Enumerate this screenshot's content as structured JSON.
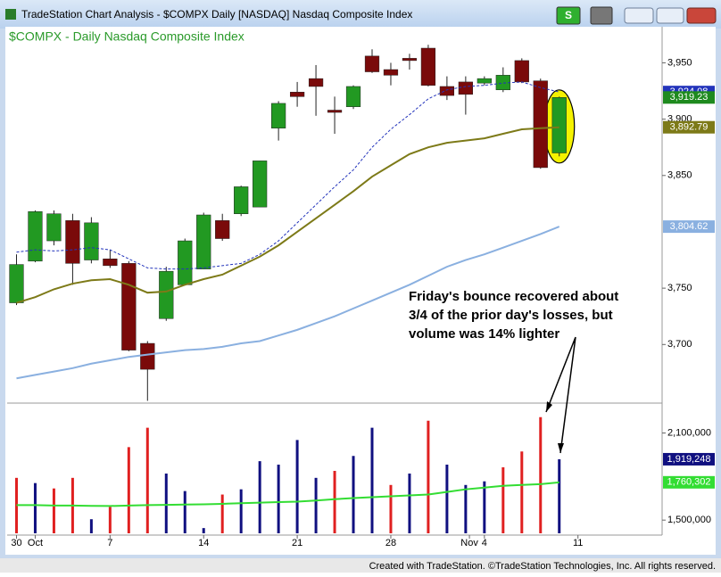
{
  "window_title": "TradeStation Chart Analysis - $COMPX Daily [NASDAQ] Nasdaq Composite Index",
  "toolbar_button": "S",
  "footer": "Created with TradeStation. ©TradeStation Technologies, Inc. All rights reserved.",
  "chart_data": {
    "type": "candlestick",
    "title": "$COMPX - Daily  Nasdaq Composite Index",
    "annotation": [
      "Friday's bounce recovered about",
      "3/4 of the prior day's losses, but",
      "volume was 14% lighter"
    ],
    "up_color": "#229922",
    "down_color": "#7a0a0a",
    "open": [
      3737,
      3774,
      3792,
      3810,
      3775,
      3776,
      3772,
      3701,
      3723,
      3753,
      3767,
      3810,
      3816,
      3822,
      3892,
      3924,
      3936,
      3908,
      3911,
      3956,
      3944,
      3954,
      3963,
      3929,
      3933,
      3932,
      3926,
      3952,
      3934,
      3870
    ],
    "high": [
      3780,
      3819,
      3819,
      3816,
      3813,
      3784,
      3774,
      3703,
      3769,
      3794,
      3817,
      3816,
      3841,
      3863,
      3916,
      3933,
      3948,
      3920,
      3930,
      3962,
      3950,
      3958,
      3966,
      3938,
      3938,
      3938,
      3946,
      3954,
      3936,
      3920
    ],
    "low": [
      3735,
      3773,
      3788,
      3753,
      3772,
      3768,
      3694,
      3650,
      3721,
      3753,
      3767,
      3792,
      3814,
      3822,
      3881,
      3911,
      3903,
      3887,
      3909,
      3941,
      3930,
      3944,
      3929,
      3917,
      3904,
      3930,
      3924,
      3932,
      3856,
      3867
    ],
    "close": [
      3771,
      3818,
      3816,
      3772,
      3808,
      3770,
      3695,
      3678,
      3765,
      3792,
      3815,
      3794,
      3840,
      3863,
      3914,
      3920,
      3929,
      3906,
      3929,
      3942,
      3939,
      3952,
      3930,
      3921,
      3922,
      3936,
      3939,
      3933,
      3857,
      3919.23
    ],
    "close_label": "3,919.23",
    "close_label_color": "#1e8a1e",
    "series": [
      {
        "name": "MA10",
        "color": "#2233bb",
        "dash": true,
        "last_label": "3,924.08",
        "values": [
          3782,
          3784,
          3783,
          3784,
          3786,
          3784,
          3776,
          3768,
          3767,
          3767,
          3768,
          3770,
          3772,
          3780,
          3792,
          3808,
          3824,
          3840,
          3855,
          3875,
          3891,
          3904,
          3918,
          3926,
          3929,
          3930,
          3932,
          3933,
          3928,
          3924.08
        ]
      },
      {
        "name": "MA20",
        "color": "#7d7a18",
        "dash": false,
        "last_label": "3,892.79",
        "values": [
          3737,
          3742,
          3749,
          3754,
          3757,
          3758,
          3753,
          3746,
          3747,
          3753,
          3758,
          3762,
          3770,
          3778,
          3788,
          3800,
          3812,
          3824,
          3836,
          3849,
          3859,
          3869,
          3875,
          3879,
          3881,
          3883,
          3887,
          3891,
          3892,
          3892.79
        ]
      },
      {
        "name": "MA50",
        "color": "#8ab0e0",
        "dash": false,
        "last_label": "3,804.62",
        "values": [
          3670,
          3673,
          3676,
          3679,
          3683,
          3686,
          3689,
          3691,
          3693,
          3695,
          3696,
          3698,
          3701,
          3703,
          3708,
          3713,
          3719,
          3725,
          3732,
          3739,
          3746,
          3753,
          3761,
          3769,
          3775,
          3780,
          3786,
          3792,
          3798,
          3804.62
        ]
      }
    ],
    "ylim": [
      3648,
      3982
    ],
    "yticks": [
      {
        "value": 3700,
        "label": "3,700"
      },
      {
        "value": 3750,
        "label": "3,750"
      },
      {
        "value": 3850,
        "label": "3,850"
      },
      {
        "value": 3900,
        "label": "3,900"
      },
      {
        "value": 3950,
        "label": "3,950"
      }
    ],
    "xlim": [
      -0.5,
      34.4
    ],
    "xticks": [
      {
        "value": 0,
        "label": "30"
      },
      {
        "value": 1,
        "label": "Oct"
      },
      {
        "value": 5,
        "label": "7"
      },
      {
        "value": 10,
        "label": "14"
      },
      {
        "value": 15,
        "label": "21"
      },
      {
        "value": 20,
        "label": "28"
      },
      {
        "value": 24.2,
        "label": "Nov"
      },
      {
        "value": 25,
        "label": "4"
      },
      {
        "value": 30,
        "label": "11"
      }
    ],
    "volume": [
      1791000,
      1755000,
      1718000,
      1791000,
      1506000,
      1591000,
      2003000,
      2136000,
      1821000,
      1700000,
      1445000,
      1676000,
      1712000,
      1906000,
      1882000,
      2052000,
      1791000,
      1839000,
      1942000,
      2136000,
      1742000,
      1821000,
      2185000,
      1882000,
      1742000,
      1767000,
      1864000,
      1973000,
      2209000,
      1919248
    ],
    "volume_colors": [
      "#e02020",
      "#101080",
      "#e02020",
      "#e02020",
      "#101080",
      "#e02020",
      "#e02020",
      "#e02020",
      "#101080",
      "#101080",
      "#101080",
      "#e02020",
      "#101080",
      "#101080",
      "#101080",
      "#101080",
      "#101080",
      "#e02020",
      "#101080",
      "#101080",
      "#e02020",
      "#101080",
      "#e02020",
      "#101080",
      "#101080",
      "#101080",
      "#e02020",
      "#e02020",
      "#e02020",
      "#101080"
    ],
    "volume_label": "1,919,248",
    "volume_label_color": "#101080",
    "volume_ma": {
      "color": "#33dd33",
      "last_label": "1,760,302",
      "values": [
        1603000,
        1603000,
        1600000,
        1600000,
        1598000,
        1597000,
        1600000,
        1603000,
        1605000,
        1607000,
        1609000,
        1612000,
        1616000,
        1620000,
        1624000,
        1627000,
        1635000,
        1644000,
        1652000,
        1658000,
        1664000,
        1670000,
        1676000,
        1694000,
        1712000,
        1724000,
        1736000,
        1742000,
        1748000,
        1760302
      ]
    },
    "y2lim": [
      1409000,
      2306000
    ],
    "y2ticks": [
      {
        "value": 1500000,
        "label": "1,500,000"
      },
      {
        "value": 2100000,
        "label": "2,100,000"
      }
    ]
  }
}
